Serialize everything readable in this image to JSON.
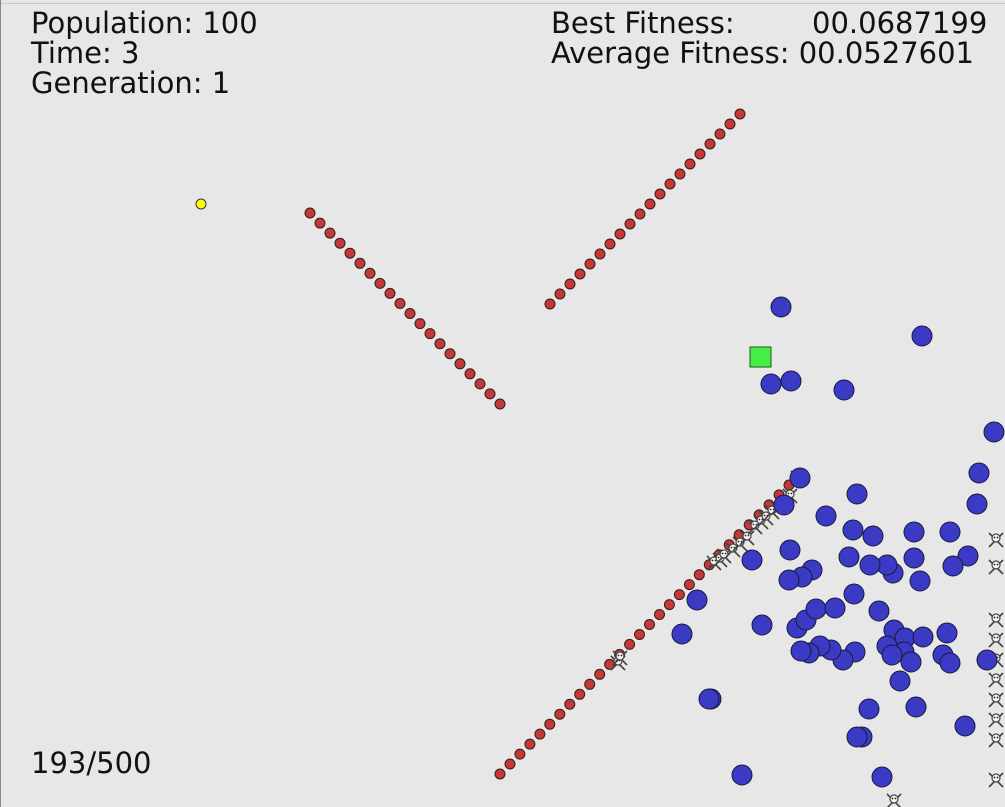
{
  "hud": {
    "population_label": "Population:",
    "population_value": "100",
    "time_label": "Time:",
    "time_value": "3",
    "generation_label": "Generation:",
    "generation_value": "1",
    "best_fitness_label": "Best Fitness:",
    "best_fitness_value": "00.0687199",
    "average_fitness_label": "Average Fitness:",
    "average_fitness_value": "00.0527601",
    "step_counter": "193/500"
  },
  "colors": {
    "background": "#e7e7e7",
    "border": "#888888",
    "obstacle_fill": "#c03a3a",
    "obstacle_stroke": "#3a1a1a",
    "agent_fill": "#3a3ac4",
    "agent_stroke": "#1a1a3a",
    "target_fill": "#44ee44",
    "target_stroke": "#1a5a1a",
    "start_fill": "#ffff00",
    "dead_marker": "#444444"
  },
  "icons": {
    "agent": "circle-agent",
    "obstacle": "circle-obstacle",
    "goal": "square-goal",
    "spawn": "circle-spawn",
    "dead": "skull-crossbones-icon"
  }
}
